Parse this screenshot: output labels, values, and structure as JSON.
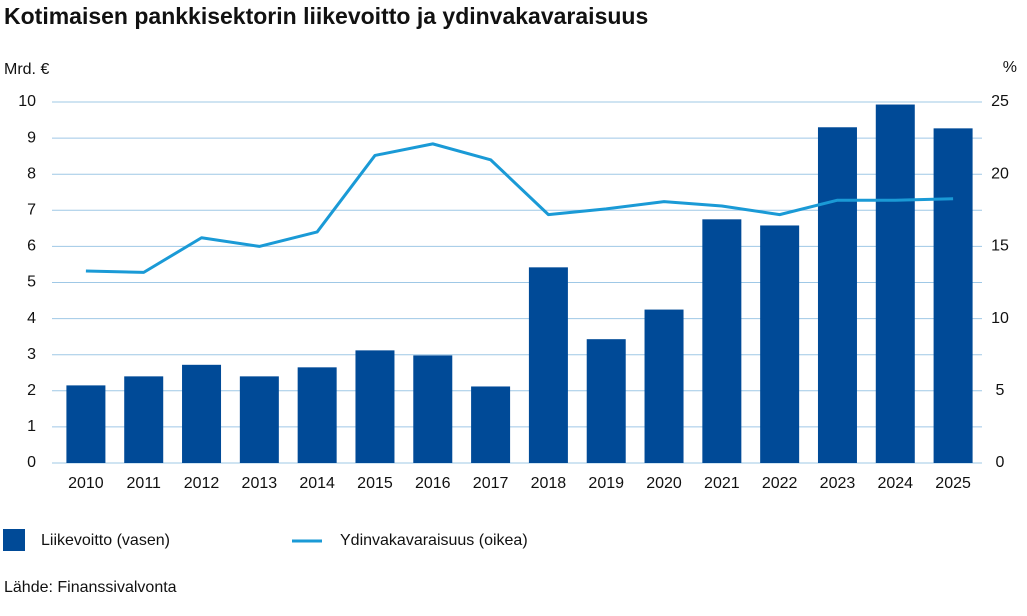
{
  "chart_data": {
    "type": "bar-line",
    "title": "Kotimaisen pankkisektorin liikevoitto ja ydinvakavaraisuus",
    "y_label": "Mrd. €",
    "y2_label": "%",
    "source": "Lähde: Finanssivalvonta",
    "categories": [
      "2010",
      "2011",
      "2012",
      "2013",
      "2014",
      "2015",
      "2016",
      "2017",
      "2018",
      "2019",
      "2020",
      "2021",
      "2022",
      "2023",
      "2024",
      "2025"
    ],
    "series": [
      {
        "name": "Liikevoitto (vasen)",
        "type": "bar",
        "color": "#004a97",
        "values": [
          2.15,
          2.4,
          2.72,
          2.4,
          2.65,
          3.12,
          2.98,
          2.12,
          5.42,
          3.43,
          4.25,
          6.75,
          6.58,
          9.3,
          9.93,
          9.27
        ]
      },
      {
        "name": "Ydinvakavaraisuus (oikea)",
        "type": "line",
        "axis": "y2",
        "color": "#1a9ad6",
        "values": [
          13.3,
          13.2,
          15.6,
          15.0,
          16.0,
          21.3,
          22.1,
          21.0,
          17.2,
          17.6,
          18.1,
          17.8,
          17.2,
          18.2,
          18.2,
          18.3
        ]
      }
    ],
    "ylim": [
      0,
      10
    ],
    "yticks": [
      0,
      1,
      2,
      3,
      4,
      5,
      6,
      7,
      8,
      9,
      10
    ],
    "y2lim": [
      0,
      25
    ],
    "y2ticks": [
      0,
      5,
      10,
      15,
      20,
      25
    ],
    "grid": true
  }
}
